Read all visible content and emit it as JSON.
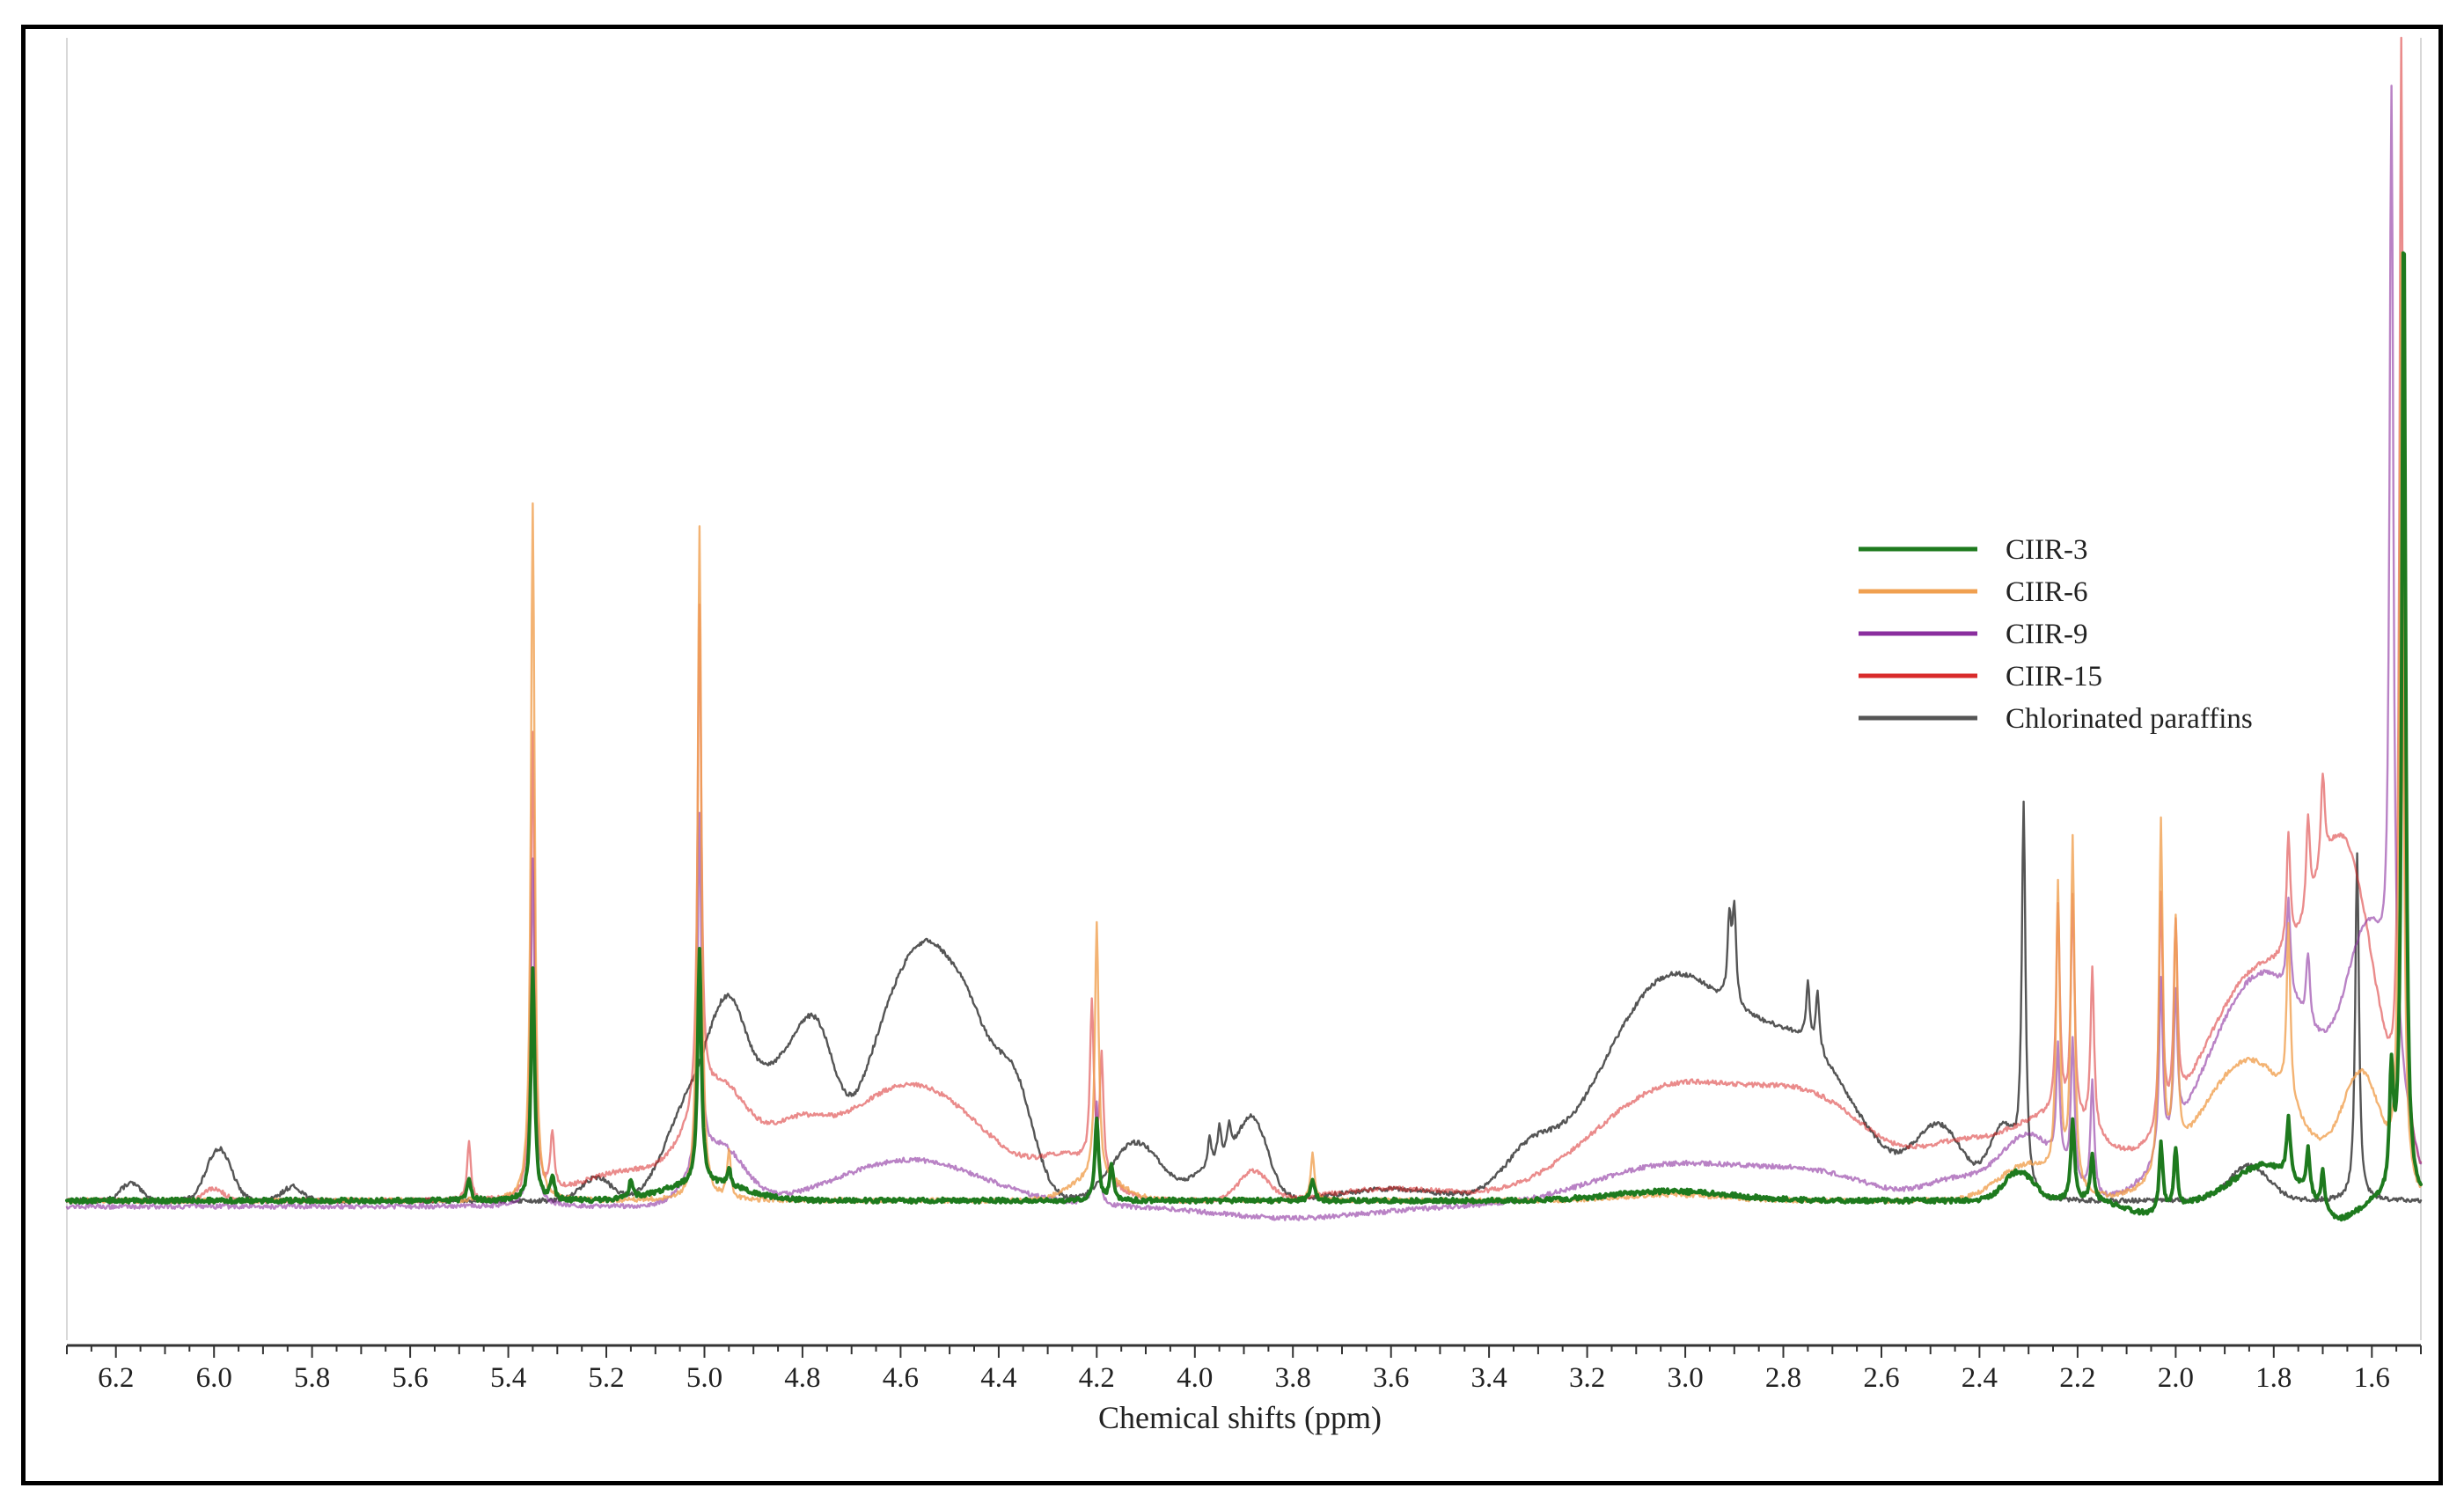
{
  "chart_data": {
    "type": "line",
    "title": "",
    "xlabel": "Chemical shifts (ppm)",
    "ylabel": "",
    "xlim": [
      6.3,
      1.5
    ],
    "x_reversed": true,
    "ylim": [
      -0.12,
      1.0
    ],
    "x_ticks": [
      "6.2",
      "6.0",
      "5.8",
      "5.6",
      "5.4",
      "5.2",
      "5.0",
      "4.8",
      "4.6",
      "4.4",
      "4.2",
      "4.0",
      "3.8",
      "3.6",
      "3.4",
      "3.2",
      "3.0",
      "2.8",
      "2.6",
      "2.4",
      "2.2",
      "2.0",
      "1.8",
      "1.6"
    ],
    "grid": false,
    "legend_position": "right",
    "series": [
      {
        "name": "Chlorinated paraffins",
        "color": "#555555",
        "baseline": 0.0,
        "broad": [
          {
            "c": 6.17,
            "h": 0.015,
            "w": 0.02
          },
          {
            "c": 5.99,
            "h": 0.045,
            "w": 0.025
          },
          {
            "c": 5.84,
            "h": 0.012,
            "w": 0.02
          },
          {
            "c": 5.22,
            "h": 0.02,
            "w": 0.03
          },
          {
            "c": 5.03,
            "h": 0.08,
            "w": 0.05
          },
          {
            "c": 4.95,
            "h": 0.14,
            "w": 0.04
          },
          {
            "c": 4.85,
            "h": 0.1,
            "w": 0.05
          },
          {
            "c": 4.77,
            "h": 0.12,
            "w": 0.04
          },
          {
            "c": 4.63,
            "h": 0.12,
            "w": 0.06
          },
          {
            "c": 4.53,
            "h": 0.18,
            "w": 0.06
          },
          {
            "c": 4.45,
            "h": 0.08,
            "w": 0.04
          },
          {
            "c": 4.37,
            "h": 0.1,
            "w": 0.04
          },
          {
            "c": 4.12,
            "h": 0.05,
            "w": 0.05
          },
          {
            "c": 3.95,
            "h": 0.03,
            "w": 0.05
          },
          {
            "c": 3.88,
            "h": 0.06,
            "w": 0.03
          },
          {
            "c": 3.6,
            "h": 0.01,
            "w": 0.1
          },
          {
            "c": 3.32,
            "h": 0.03,
            "w": 0.05
          },
          {
            "c": 3.03,
            "h": 0.19,
            "w": 0.14
          },
          {
            "c": 2.75,
            "h": 0.11,
            "w": 0.11
          },
          {
            "c": 2.48,
            "h": 0.06,
            "w": 0.05
          },
          {
            "c": 2.35,
            "h": 0.06,
            "w": 0.03
          },
          {
            "c": 1.85,
            "h": 0.03,
            "w": 0.04
          }
        ],
        "sharp": [
          {
            "c": 3.97,
            "h": 0.025
          },
          {
            "c": 3.95,
            "h": 0.03
          },
          {
            "c": 3.93,
            "h": 0.025
          },
          {
            "c": 2.91,
            "h": 0.07
          },
          {
            "c": 2.9,
            "h": 0.08
          },
          {
            "c": 2.75,
            "h": 0.05
          },
          {
            "c": 2.73,
            "h": 0.05
          },
          {
            "c": 2.31,
            "h": 0.32
          },
          {
            "c": 1.63,
            "h": 0.3
          }
        ]
      },
      {
        "name": "CIIR-15",
        "color": "#d92b2b",
        "opacity": 0.55,
        "baseline": 0.0,
        "broad": [
          {
            "c": 6.0,
            "h": 0.01,
            "w": 0.02
          },
          {
            "c": 5.15,
            "h": 0.025,
            "w": 0.1
          },
          {
            "c": 4.97,
            "h": 0.09,
            "w": 0.06
          },
          {
            "c": 4.82,
            "h": 0.04,
            "w": 0.06
          },
          {
            "c": 4.58,
            "h": 0.1,
            "w": 0.15
          },
          {
            "c": 4.25,
            "h": 0.03,
            "w": 0.06
          },
          {
            "c": 3.88,
            "h": 0.025,
            "w": 0.03
          },
          {
            "c": 3.6,
            "h": 0.01,
            "w": 0.12
          },
          {
            "c": 3.03,
            "h": 0.095,
            "w": 0.16
          },
          {
            "c": 2.73,
            "h": 0.075,
            "w": 0.13
          },
          {
            "c": 2.45,
            "h": 0.035,
            "w": 0.08
          },
          {
            "c": 2.25,
            "h": 0.07,
            "w": 0.1
          },
          {
            "c": 1.82,
            "h": 0.2,
            "w": 0.13
          },
          {
            "c": 1.65,
            "h": 0.22,
            "w": 0.06
          }
        ],
        "sharp": [
          {
            "c": 5.48,
            "h": 0.05
          },
          {
            "c": 5.35,
            "h": 0.4
          },
          {
            "c": 5.31,
            "h": 0.05
          },
          {
            "c": 5.01,
            "h": 0.43
          },
          {
            "c": 4.21,
            "h": 0.14
          },
          {
            "c": 4.19,
            "h": 0.1
          },
          {
            "c": 2.24,
            "h": 0.18
          },
          {
            "c": 2.21,
            "h": 0.19
          },
          {
            "c": 2.17,
            "h": 0.14
          },
          {
            "c": 2.03,
            "h": 0.2
          },
          {
            "c": 2.0,
            "h": 0.16
          },
          {
            "c": 1.77,
            "h": 0.1
          },
          {
            "c": 1.73,
            "h": 0.08
          },
          {
            "c": 1.7,
            "h": 0.08
          },
          {
            "c": 1.54,
            "h": 0.95
          }
        ]
      },
      {
        "name": "CIIR-9",
        "color": "#8a2e9e",
        "opacity": 0.6,
        "baseline": -0.005,
        "broad": [
          {
            "c": 4.97,
            "h": 0.05,
            "w": 0.05
          },
          {
            "c": 4.58,
            "h": 0.04,
            "w": 0.15
          },
          {
            "c": 3.8,
            "h": -0.01,
            "w": 0.15
          },
          {
            "c": 3.03,
            "h": 0.035,
            "w": 0.16
          },
          {
            "c": 2.73,
            "h": 0.025,
            "w": 0.13
          },
          {
            "c": 2.45,
            "h": 0.02,
            "w": 0.06
          },
          {
            "c": 2.3,
            "h": 0.06,
            "w": 0.06
          },
          {
            "c": 1.82,
            "h": 0.2,
            "w": 0.12
          },
          {
            "c": 1.6,
            "h": 0.2,
            "w": 0.05
          }
        ],
        "sharp": [
          {
            "c": 5.35,
            "h": 0.3
          },
          {
            "c": 5.01,
            "h": 0.3
          },
          {
            "c": 4.2,
            "h": 0.09
          },
          {
            "c": 2.24,
            "h": 0.1
          },
          {
            "c": 2.21,
            "h": 0.12
          },
          {
            "c": 2.17,
            "h": 0.1
          },
          {
            "c": 2.03,
            "h": 0.15
          },
          {
            "c": 2.0,
            "h": 0.12
          },
          {
            "c": 1.77,
            "h": 0.08
          },
          {
            "c": 1.73,
            "h": 0.06
          },
          {
            "c": 1.56,
            "h": 0.8
          }
        ]
      },
      {
        "name": "CIIR-6",
        "color": "#f0a050",
        "opacity": 0.8,
        "baseline": 0.0,
        "broad": [
          {
            "c": 4.2,
            "h": 0.02,
            "w": 0.05
          },
          {
            "c": 3.03,
            "h": 0.005,
            "w": 0.1
          },
          {
            "c": 2.3,
            "h": 0.03,
            "w": 0.06
          },
          {
            "c": 1.85,
            "h": 0.12,
            "w": 0.1
          },
          {
            "c": 1.62,
            "h": 0.1,
            "w": 0.04
          }
        ],
        "sharp": [
          {
            "c": 5.35,
            "h": 0.6
          },
          {
            "c": 5.01,
            "h": 0.58
          },
          {
            "c": 4.95,
            "h": 0.04
          },
          {
            "c": 4.2,
            "h": 0.22
          },
          {
            "c": 3.76,
            "h": 0.04
          },
          {
            "c": 2.24,
            "h": 0.25
          },
          {
            "c": 2.21,
            "h": 0.3
          },
          {
            "c": 2.03,
            "h": 0.3
          },
          {
            "c": 2.0,
            "h": 0.2
          },
          {
            "c": 1.77,
            "h": 0.15
          },
          {
            "c": 1.54,
            "h": 0.8
          }
        ]
      },
      {
        "name": "CIIR-3",
        "color": "#1e7a1e",
        "baseline": 0.0,
        "broad": [
          {
            "c": 5.0,
            "h": 0.015,
            "w": 0.08
          },
          {
            "c": 3.03,
            "h": 0.008,
            "w": 0.12
          },
          {
            "c": 2.32,
            "h": 0.025,
            "w": 0.03
          },
          {
            "c": 2.05,
            "h": -0.012,
            "w": 0.05
          },
          {
            "c": 1.82,
            "h": 0.03,
            "w": 0.06
          },
          {
            "c": 1.67,
            "h": -0.018,
            "w": 0.04
          }
        ],
        "sharp": [
          {
            "c": 5.48,
            "h": 0.02
          },
          {
            "c": 5.35,
            "h": 0.2
          },
          {
            "c": 5.31,
            "h": 0.02
          },
          {
            "c": 5.15,
            "h": 0.015
          },
          {
            "c": 5.01,
            "h": 0.2
          },
          {
            "c": 4.95,
            "h": 0.015
          },
          {
            "c": 4.2,
            "h": 0.07
          },
          {
            "c": 4.17,
            "h": 0.03
          },
          {
            "c": 3.76,
            "h": 0.02
          },
          {
            "c": 2.21,
            "h": 0.07
          },
          {
            "c": 2.17,
            "h": 0.04
          },
          {
            "c": 2.03,
            "h": 0.06
          },
          {
            "c": 2.0,
            "h": 0.05
          },
          {
            "c": 1.77,
            "h": 0.05
          },
          {
            "c": 1.73,
            "h": 0.04
          },
          {
            "c": 1.7,
            "h": 0.035
          },
          {
            "c": 1.56,
            "h": 0.1
          },
          {
            "c": 1.535,
            "h": 0.85
          }
        ]
      }
    ],
    "legend_order": [
      "CIIR-3",
      "CIIR-6",
      "CIIR-9",
      "CIIR-15",
      "Chlorinated paraffins"
    ]
  }
}
